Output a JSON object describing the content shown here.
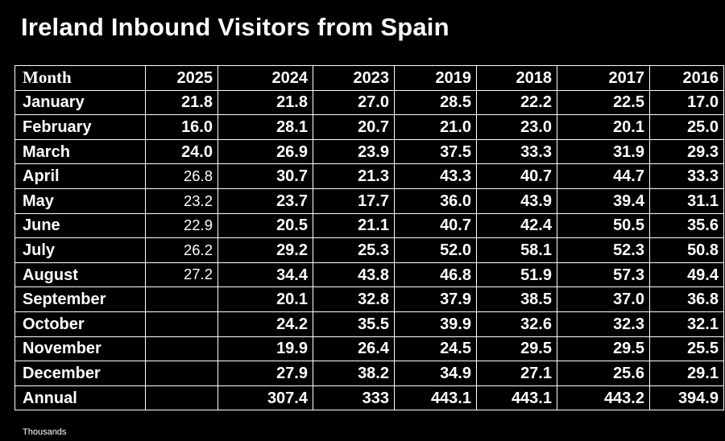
{
  "title": "Ireland Inbound Visitors from Spain",
  "units_note": "Thousands",
  "chart_data": {
    "type": "table",
    "title": "Ireland Inbound Visitors from Spain",
    "columns": [
      "Month",
      "2025",
      "2024",
      "2023",
      "2019",
      "2018",
      "2017",
      "2016"
    ],
    "rows": [
      {
        "label": "January",
        "values": [
          "21.8",
          "21.8",
          "27.0",
          "28.5",
          "22.2",
          "22.5",
          "17.0"
        ]
      },
      {
        "label": "February",
        "values": [
          "16.0",
          "28.1",
          "20.7",
          "21.0",
          "23.0",
          "20.1",
          "25.0"
        ]
      },
      {
        "label": "March",
        "values": [
          "24.0",
          "26.9",
          "23.9",
          "37.5",
          "33.3",
          "31.9",
          "29.3"
        ]
      },
      {
        "label": "April",
        "values": [
          "26.8",
          "30.7",
          "21.3",
          "43.3",
          "40.7",
          "44.7",
          "33.3"
        ]
      },
      {
        "label": "May",
        "values": [
          "23.2",
          "23.7",
          "17.7",
          "36.0",
          "43.9",
          "39.4",
          "31.1"
        ]
      },
      {
        "label": "June",
        "values": [
          "22.9",
          "20.5",
          "21.1",
          "40.7",
          "42.4",
          "50.5",
          "35.6"
        ]
      },
      {
        "label": "July",
        "values": [
          "26.2",
          "29.2",
          "25.3",
          "52.0",
          "58.1",
          "52.3",
          "50.8"
        ]
      },
      {
        "label": "August",
        "values": [
          "27.2",
          "34.4",
          "43.8",
          "46.8",
          "51.9",
          "57.3",
          "49.4"
        ]
      },
      {
        "label": "September",
        "values": [
          "",
          "20.1",
          "32.8",
          "37.9",
          "38.5",
          "37.0",
          "36.8"
        ]
      },
      {
        "label": "October",
        "values": [
          "",
          "24.2",
          "35.5",
          "39.9",
          "32.6",
          "32.3",
          "32.1"
        ]
      },
      {
        "label": "November",
        "values": [
          "",
          "19.9",
          "26.4",
          "24.5",
          "29.5",
          "29.5",
          "25.5"
        ]
      },
      {
        "label": "December",
        "values": [
          "",
          "27.9",
          "38.2",
          "34.9",
          "27.1",
          "25.6",
          "29.1"
        ]
      },
      {
        "label": "Annual",
        "values": [
          "",
          "307.4",
          "333",
          "443.1",
          "443.1",
          "443.2",
          "394.9"
        ]
      }
    ]
  }
}
